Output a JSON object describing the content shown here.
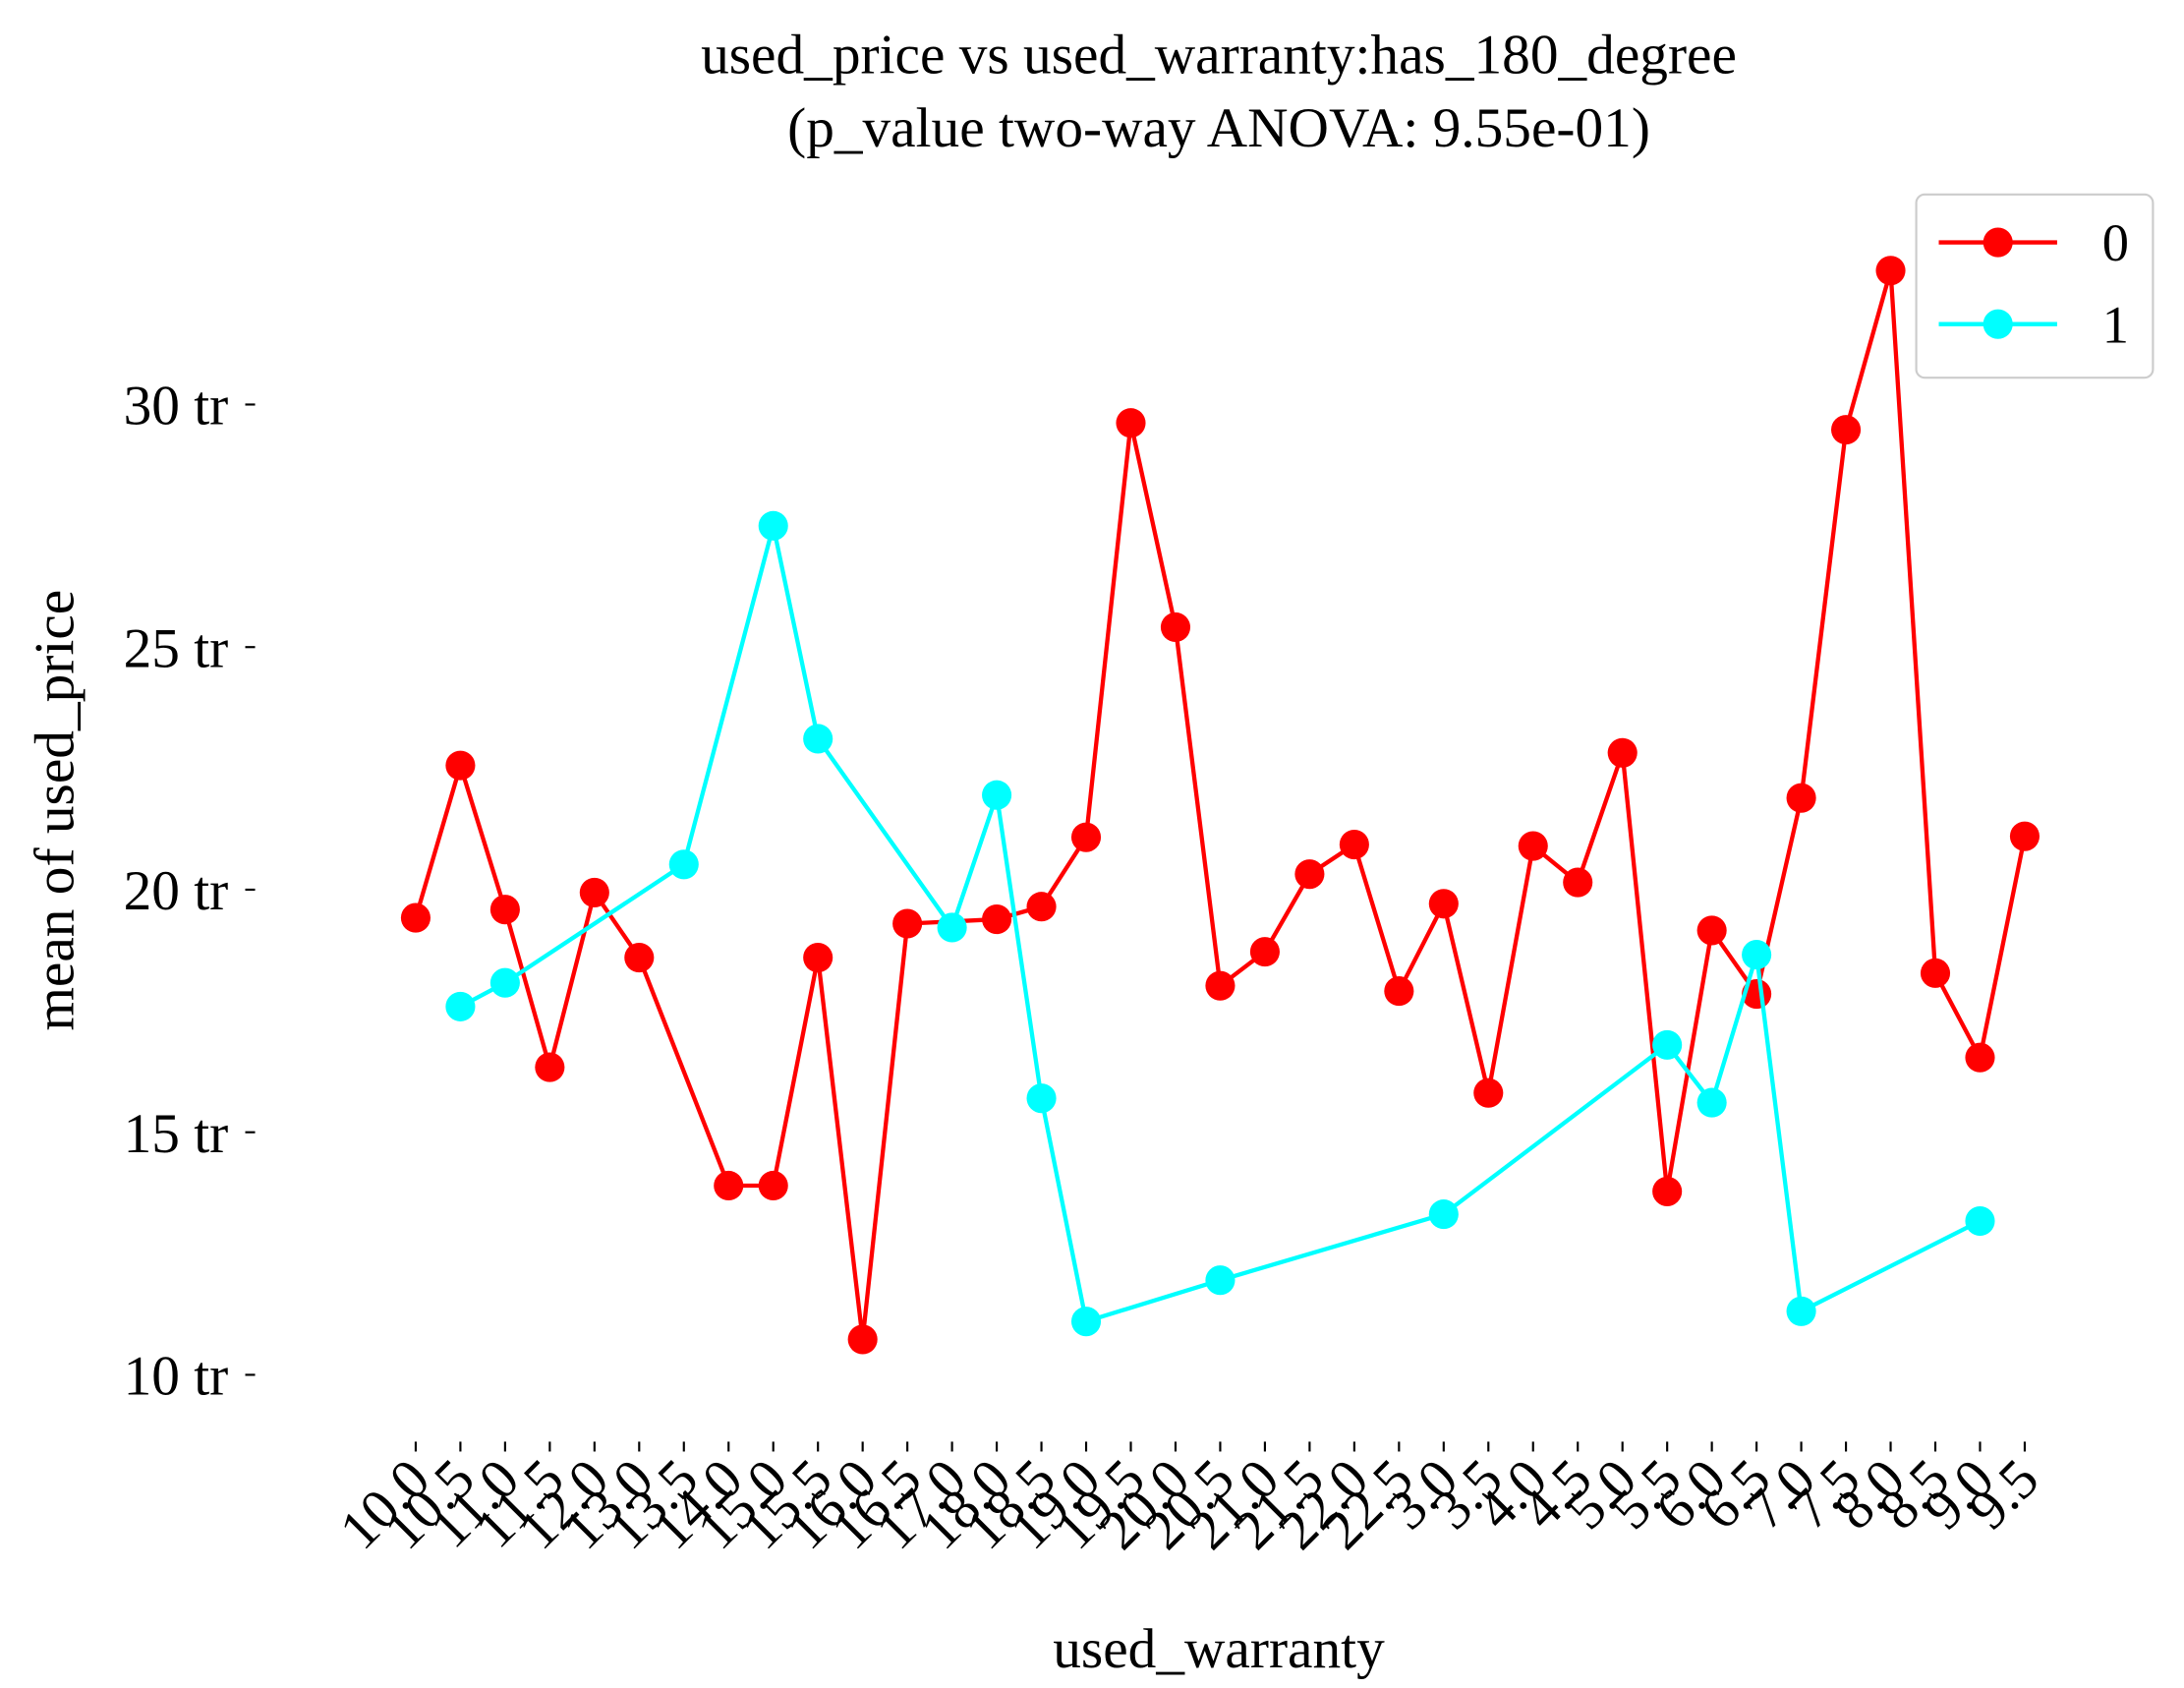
{
  "chart_data": {
    "type": "line",
    "title": "used_price vs used_warranty:has_180_degree",
    "subtitle": "(p_value two-way ANOVA: 9.55e-01)",
    "x_label": "used_warranty",
    "y_label": "mean of used_price",
    "categories": [
      "10.0",
      "10.5",
      "11.0",
      "11.5",
      "12.0",
      "13.0",
      "13.5",
      "14.0",
      "15.0",
      "15.5",
      "16.0",
      "16.5",
      "17.0",
      "18.0",
      "18.5",
      "19.0",
      "19.5",
      "20.0",
      "20.5",
      "21.0",
      "21.5",
      "22.0",
      "22.5",
      "3.0",
      "3.5",
      "4.0",
      "4.5",
      "5.0",
      "5.5",
      "6.0",
      "6.5",
      "7.0",
      "7.5",
      "8.0",
      "8.5",
      "9.0",
      "9.5"
    ],
    "series": [
      {
        "name": "0",
        "color": "#ff0000",
        "x": [
          "10.0",
          "10.5",
          "11.0",
          "11.5",
          "12.0",
          "13.0",
          "14.0",
          "15.0",
          "15.5",
          "16.0",
          "16.5",
          "18.0",
          "18.5",
          "19.0",
          "19.5",
          "20.0",
          "20.5",
          "21.0",
          "21.5",
          "22.0",
          "22.5",
          "3.0",
          "3.5",
          "4.0",
          "4.5",
          "5.0",
          "5.5",
          "6.0",
          "6.5",
          "7.0",
          "7.5",
          "8.0",
          "8.5",
          "9.0",
          "9.5"
        ],
        "values": [
          19.42,
          22.56,
          19.59,
          16.34,
          19.94,
          18.6,
          13.9,
          13.9,
          18.6,
          10.73,
          19.3,
          19.39,
          19.65,
          21.08,
          29.62,
          25.41,
          18.02,
          18.72,
          20.32,
          20.93,
          17.91,
          19.71,
          15.81,
          20.9,
          20.15,
          22.82,
          13.78,
          19.16,
          17.85,
          21.89,
          29.48,
          32.76,
          18.28,
          16.54,
          21.1
        ]
      },
      {
        "name": "1",
        "color": "#00ffff",
        "x": [
          "10.5",
          "11.0",
          "13.5",
          "15.0",
          "15.5",
          "17.0",
          "18.0",
          "18.5",
          "19.0",
          "20.5",
          "3.0",
          "5.5",
          "6.0",
          "6.5",
          "7.0",
          "9.0"
        ],
        "values": [
          17.59,
          18.08,
          20.52,
          27.5,
          23.11,
          19.22,
          21.95,
          15.7,
          11.1,
          11.95,
          13.31,
          16.8,
          15.61,
          18.66,
          11.31,
          13.17
        ]
      }
    ],
    "ylim": [
      9,
      33.4
    ],
    "yticks": [
      {
        "value": 10,
        "label": "10 tr"
      },
      {
        "value": 15,
        "label": "15 tr"
      },
      {
        "value": 20,
        "label": "20 tr"
      },
      {
        "value": 25,
        "label": "25 tr"
      },
      {
        "value": 30,
        "label": "30 tr"
      }
    ],
    "legend": "upper right",
    "grid": false
  }
}
